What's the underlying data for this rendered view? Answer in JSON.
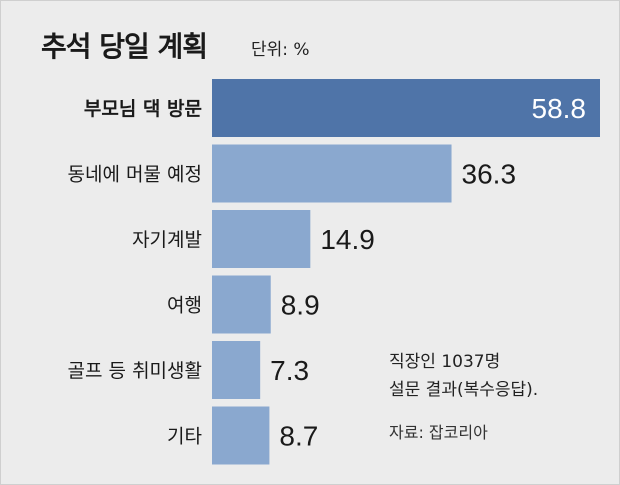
{
  "header": {
    "title": "추석 당일 계획",
    "unit": "단위: %"
  },
  "notes": {
    "line1": "직장인 1037명",
    "line2": "설문 결과(복수응답).",
    "source": "자료: 잡코리아"
  },
  "colors": {
    "highlight_bar": "#4f74a8",
    "bar": "#8aa8cf",
    "highlight_value": "#ffffff",
    "value": "#1a1a1a",
    "background": "#ececec"
  },
  "chart_data": {
    "type": "bar",
    "orientation": "horizontal",
    "title": "추석 당일 계획",
    "unit": "%",
    "categories": [
      "부모님 댁 방문",
      "동네에 머물 예정",
      "자기계발",
      "여행",
      "골프 등 취미생활",
      "기타"
    ],
    "values": [
      58.8,
      36.3,
      14.9,
      8.9,
      7.3,
      8.7
    ],
    "value_labels": [
      "58.8",
      "36.3",
      "14.9",
      "8.9",
      "7.3",
      "8.7"
    ],
    "highlight_index": 0,
    "xlim": [
      0,
      58.8
    ],
    "grid": false,
    "legend": "none"
  }
}
